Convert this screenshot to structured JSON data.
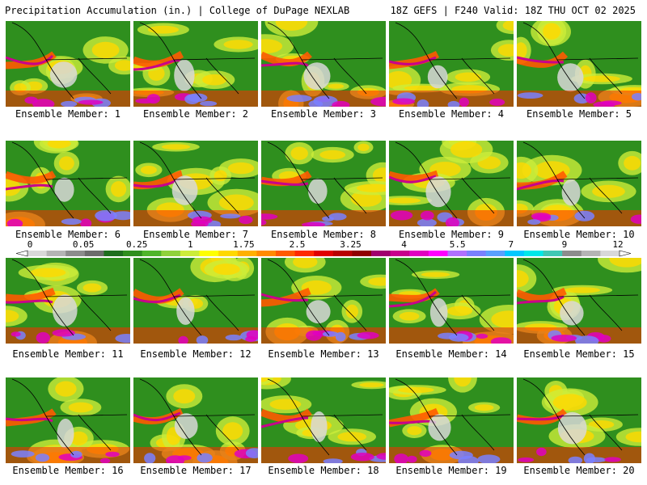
{
  "header": {
    "title_left": "Precipitation Accumulation (in.) | College of DuPage NEXLAB",
    "title_right": "18Z GEFS | F240 Valid: 18Z THU OCT 02 2025"
  },
  "panels": [
    {
      "label": "Ensemble Member: 1"
    },
    {
      "label": "Ensemble Member: 2"
    },
    {
      "label": "Ensemble Member: 3"
    },
    {
      "label": "Ensemble Member: 4"
    },
    {
      "label": "Ensemble Member: 5"
    },
    {
      "label": "Ensemble Member: 6"
    },
    {
      "label": "Ensemble Member: 7"
    },
    {
      "label": "Ensemble Member: 8"
    },
    {
      "label": "Ensemble Member: 9"
    },
    {
      "label": "Ensemble Member: 10"
    },
    {
      "label": "Ensemble Member: 11"
    },
    {
      "label": "Ensemble Member: 12"
    },
    {
      "label": "Ensemble Member: 13"
    },
    {
      "label": "Ensemble Member: 14"
    },
    {
      "label": "Ensemble Member: 15"
    },
    {
      "label": "Ensemble Member: 16"
    },
    {
      "label": "Ensemble Member: 17"
    },
    {
      "label": "Ensemble Member: 18"
    },
    {
      "label": "Ensemble Member: 19"
    },
    {
      "label": "Ensemble Member: 20"
    }
  ],
  "colorbar": {
    "tick_labels": [
      "0",
      "0.05",
      "0.25",
      "1",
      "1.75",
      "2.5",
      "3.25",
      "4",
      "5.5",
      "7",
      "9",
      "12"
    ],
    "colors": [
      "#d8d8d8",
      "#b4b4b4",
      "#8c8c8c",
      "#6c6c6c",
      "#1e6e1e",
      "#2f8f1e",
      "#4fb52a",
      "#8fd13a",
      "#ccec3a",
      "#ffff00",
      "#ffd800",
      "#ffb000",
      "#ff8a00",
      "#ff5a00",
      "#ff2a00",
      "#e00000",
      "#b80000",
      "#900000",
      "#a0006e",
      "#c8008c",
      "#e000c0",
      "#ff00ff",
      "#b070ff",
      "#7a80ff",
      "#5aa0ff",
      "#00c8ff",
      "#00e8e8",
      "#40c8b4",
      "#8c8c8c",
      "#b4b4b4",
      "#d8d8d8"
    ]
  }
}
